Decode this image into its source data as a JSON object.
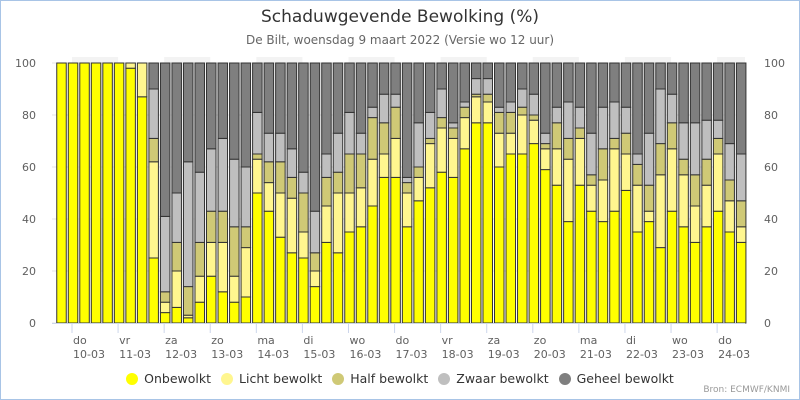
{
  "chart_data": {
    "type": "bar",
    "stacked": true,
    "title": "Schaduwgevende Bewolking (%)",
    "subtitle": "De Bilt, woensdag 9 maart 2022 (Versie wo 12 uur)",
    "xlabel": "",
    "ylabel": "",
    "ylim": [
      0,
      100
    ],
    "yticks": [
      0,
      20,
      40,
      60,
      80,
      100
    ],
    "grid": true,
    "legend_position": "bottom",
    "x_day_labels": [
      {
        "day": "do",
        "date": "10-03"
      },
      {
        "day": "vr",
        "date": "11-03"
      },
      {
        "day": "za",
        "date": "12-03"
      },
      {
        "day": "zo",
        "date": "13-03"
      },
      {
        "day": "ma",
        "date": "14-03"
      },
      {
        "day": "di",
        "date": "15-03"
      },
      {
        "day": "wo",
        "date": "16-03"
      },
      {
        "day": "do",
        "date": "17-03"
      },
      {
        "day": "vr",
        "date": "18-03"
      },
      {
        "day": "za",
        "date": "19-03"
      },
      {
        "day": "zo",
        "date": "20-03"
      },
      {
        "day": "ma",
        "date": "21-03"
      },
      {
        "day": "di",
        "date": "22-03"
      },
      {
        "day": "wo",
        "date": "23-03"
      },
      {
        "day": "do",
        "date": "24-03"
      }
    ],
    "bar_count": 60,
    "bars_per_day": 4,
    "series": [
      {
        "name": "Onbewolkt",
        "color": "#ffff00",
        "values": [
          100,
          100,
          100,
          100,
          100,
          100,
          98,
          87,
          25,
          4,
          6,
          2,
          8,
          18,
          12,
          8,
          10,
          50,
          43,
          33,
          27,
          25,
          14,
          31,
          27,
          35,
          37,
          45,
          56,
          56,
          37,
          47,
          52,
          58,
          56,
          67,
          77,
          77,
          60,
          65,
          65,
          69,
          59,
          53,
          39,
          53,
          43,
          39,
          43,
          51,
          35,
          39,
          29,
          43,
          37,
          31,
          37,
          43,
          35,
          31
        ]
      },
      {
        "name": "Licht bewolkt",
        "color": "#fff68f",
        "values": [
          0,
          0,
          0,
          0,
          0,
          0,
          2,
          13,
          37,
          4,
          14,
          1,
          10,
          13,
          19,
          10,
          19,
          13,
          11,
          17,
          21,
          10,
          6,
          14,
          23,
          15,
          15,
          18,
          9,
          15,
          13,
          9,
          17,
          17,
          15,
          12,
          10,
          8,
          13,
          8,
          15,
          9,
          8,
          14,
          24,
          18,
          10,
          16,
          24,
          14,
          18,
          4,
          28,
          24,
          20,
          14,
          16,
          22,
          12,
          6
        ]
      },
      {
        "name": "Half bewolkt",
        "color": "#cfc976",
        "values": [
          0,
          0,
          0,
          0,
          0,
          0,
          0,
          0,
          9,
          4,
          11,
          11,
          13,
          12,
          12,
          19,
          8,
          2,
          8,
          12,
          8,
          15,
          7,
          11,
          8,
          15,
          13,
          16,
          12,
          12,
          4,
          4,
          2,
          4,
          4,
          4,
          1,
          3,
          8,
          8,
          3,
          2,
          2,
          10,
          8,
          4,
          4,
          12,
          4,
          8,
          8,
          10,
          12,
          10,
          6,
          12,
          10,
          6,
          8,
          10
        ]
      },
      {
        "name": "Zwaar bewolkt",
        "color": "#bfbfbf",
        "values": [
          0,
          0,
          0,
          0,
          0,
          0,
          0,
          0,
          19,
          29,
          19,
          48,
          27,
          24,
          28,
          26,
          23,
          16,
          11,
          11,
          11,
          8,
          16,
          9,
          15,
          16,
          8,
          4,
          11,
          5,
          2,
          17,
          10,
          11,
          2,
          2,
          6,
          6,
          2,
          4,
          7,
          8,
          4,
          6,
          14,
          8,
          16,
          16,
          14,
          10,
          4,
          20,
          21,
          11,
          14,
          20,
          15,
          7,
          14,
          18
        ]
      },
      {
        "name": "Geheel bewolkt",
        "color": "#7f7f7f",
        "values": [
          0,
          0,
          0,
          0,
          0,
          0,
          0,
          0,
          10,
          59,
          50,
          38,
          42,
          33,
          29,
          37,
          40,
          19,
          27,
          27,
          33,
          42,
          57,
          35,
          27,
          19,
          27,
          17,
          12,
          12,
          44,
          23,
          19,
          10,
          23,
          15,
          6,
          6,
          17,
          15,
          10,
          12,
          27,
          17,
          15,
          17,
          27,
          17,
          15,
          17,
          35,
          27,
          10,
          12,
          23,
          23,
          22,
          22,
          31,
          35
        ]
      }
    ],
    "shaded_days": [
      "10-03",
      "12-03",
      "14-03",
      "16-03",
      "18-03",
      "20-03",
      "22-03",
      "24-03"
    ]
  },
  "legend": {
    "items": [
      {
        "label": "Onbewolkt",
        "color": "#ffff00"
      },
      {
        "label": "Licht bewolkt",
        "color": "#fff68f"
      },
      {
        "label": "Half bewolkt",
        "color": "#cfc976"
      },
      {
        "label": "Zwaar bewolkt",
        "color": "#bfbfbf"
      },
      {
        "label": "Geheel bewolkt",
        "color": "#7f7f7f"
      }
    ]
  },
  "credits": "Bron: ECMWF/KNMI"
}
